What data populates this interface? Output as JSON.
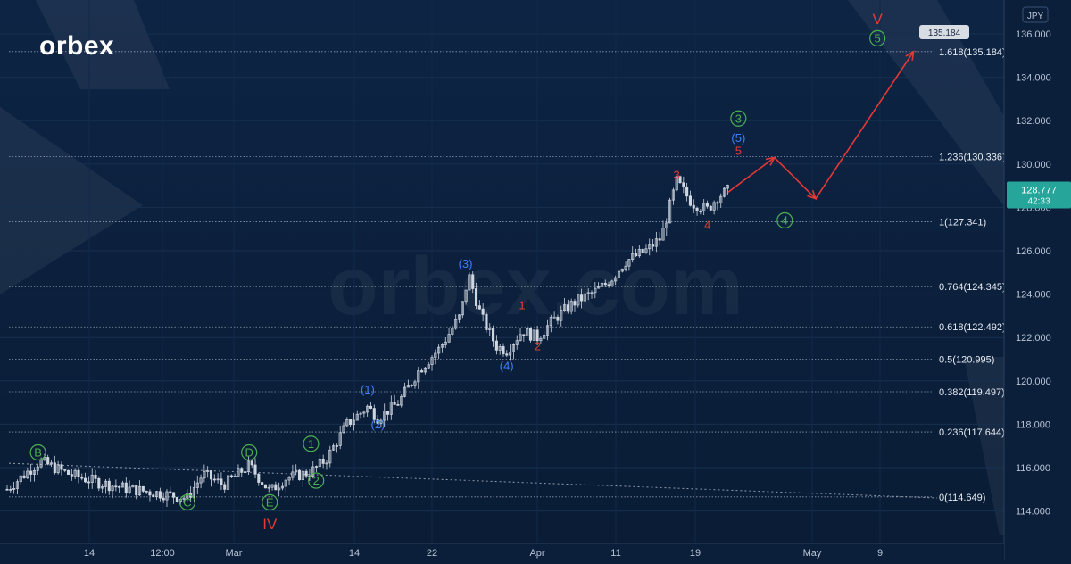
{
  "brand": {
    "logo_text": "orbex",
    "watermark_text": "orbex.com"
  },
  "colors": {
    "background": "#0b1f3a",
    "candle_up": "#cfd6e0",
    "candle_down": "#cfd6e0",
    "wave_green": "#4caf50",
    "wave_blue": "#3d7fff",
    "wave_red": "#e53935",
    "price_tag": "#26a69a"
  },
  "chart_data": {
    "type": "candlestick",
    "symbol_currency": "JPY",
    "ylim": [
      113,
      137
    ],
    "y_ticks": [
      "114.000",
      "116.000",
      "118.000",
      "120.000",
      "122.000",
      "124.000",
      "126.000",
      "128.000",
      "130.000",
      "132.000",
      "134.000",
      "136.000"
    ],
    "x_ticks": [
      "14",
      "12:00",
      "Mar",
      "14",
      "22",
      "Apr",
      "11",
      "19",
      "May",
      "9"
    ],
    "current_price": "128.777",
    "countdown": "42:33",
    "target_label": "135.184",
    "fib_levels": [
      {
        "value": 135.184,
        "label": "1.618(135.184)"
      },
      {
        "value": 130.336,
        "label": "1.236(130.336)"
      },
      {
        "value": 127.341,
        "label": "1(127.341)"
      },
      {
        "value": 124.345,
        "label": "0.764(124.345)"
      },
      {
        "value": 122.492,
        "label": "0.618(122.492)"
      },
      {
        "value": 120.995,
        "label": "0.5(120.995)"
      },
      {
        "value": 119.497,
        "label": "0.382(119.497)"
      },
      {
        "value": 117.644,
        "label": "0.236(117.644)"
      },
      {
        "value": 114.649,
        "label": "0(114.649)"
      }
    ],
    "price_path": [
      {
        "x": "start",
        "y": 115.0
      },
      {
        "x": "14",
        "y": 116.3
      },
      {
        "x": "12:00",
        "y": 114.7
      },
      {
        "x": "Mar",
        "y": 115.8
      },
      {
        "x": "E",
        "y": 114.8
      },
      {
        "x": "14",
        "y": 117.0
      },
      {
        "x": "22",
        "y": 120.0
      },
      {
        "x": "(3)",
        "y": 124.9
      },
      {
        "x": "(4)",
        "y": 121.3
      },
      {
        "x": "Apr",
        "y": 122.5
      },
      {
        "x": "11",
        "y": 124.0
      },
      {
        "x": "3",
        "y": 129.2
      },
      {
        "x": "4",
        "y": 127.8
      },
      {
        "x": "last",
        "y": 128.777
      }
    ],
    "projection": [
      {
        "x": "last",
        "y": 128.7
      },
      {
        "x": "5",
        "y": 130.3
      },
      {
        "x": "4",
        "y": 128.4
      },
      {
        "x": "5",
        "y": 135.184
      }
    ],
    "wave_labels": [
      {
        "text": "B",
        "color": "green",
        "circled": true,
        "x_day": 3,
        "y": 116.7
      },
      {
        "text": "C",
        "color": "green",
        "circled": true,
        "x_day": 17.5,
        "y": 114.4
      },
      {
        "text": "D",
        "color": "green",
        "circled": true,
        "x_day": 23.5,
        "y": 116.7
      },
      {
        "text": "E",
        "color": "green",
        "circled": true,
        "x_day": 25.5,
        "y": 114.4
      },
      {
        "text": "IV",
        "color": "red",
        "circled": false,
        "x_day": 25.5,
        "y": 113.4
      },
      {
        "text": "1",
        "color": "green",
        "circled": true,
        "x_day": 29.5,
        "y": 117.1
      },
      {
        "text": "2",
        "color": "green",
        "circled": true,
        "x_day": 30,
        "y": 115.4
      },
      {
        "text": "(1)",
        "color": "blue",
        "circled": false,
        "x_day": 35,
        "y": 119.6
      },
      {
        "text": "(2)",
        "color": "blue",
        "circled": false,
        "x_day": 36,
        "y": 118.0
      },
      {
        "text": "(3)",
        "color": "blue",
        "circled": false,
        "x_day": 44.5,
        "y": 125.4
      },
      {
        "text": "(4)",
        "color": "blue",
        "circled": false,
        "x_day": 48.5,
        "y": 120.7
      },
      {
        "text": "1",
        "color": "red",
        "circled": false,
        "x_day": 50,
        "y": 123.5
      },
      {
        "text": "2",
        "color": "red",
        "circled": false,
        "x_day": 51.5,
        "y": 121.6
      },
      {
        "text": "3",
        "color": "red",
        "circled": false,
        "x_day": 65,
        "y": 129.5
      },
      {
        "text": "4",
        "color": "red",
        "circled": false,
        "x_day": 68,
        "y": 127.2
      },
      {
        "text": "5",
        "color": "red",
        "circled": false,
        "x_day": 71,
        "y": 130.6
      },
      {
        "text": "(5)",
        "color": "blue",
        "circled": false,
        "x_day": 71,
        "y": 131.2
      },
      {
        "text": "3",
        "color": "green",
        "circled": true,
        "x_day": 71,
        "y": 132.1
      },
      {
        "text": "4",
        "color": "green",
        "circled": true,
        "x_day": 75.5,
        "y": 127.4
      },
      {
        "text": "5",
        "color": "green",
        "circled": true,
        "x_day": 84.5,
        "y": 135.8
      },
      {
        "text": "V",
        "color": "red",
        "circled": false,
        "x_day": 84.5,
        "y": 136.7
      }
    ]
  }
}
